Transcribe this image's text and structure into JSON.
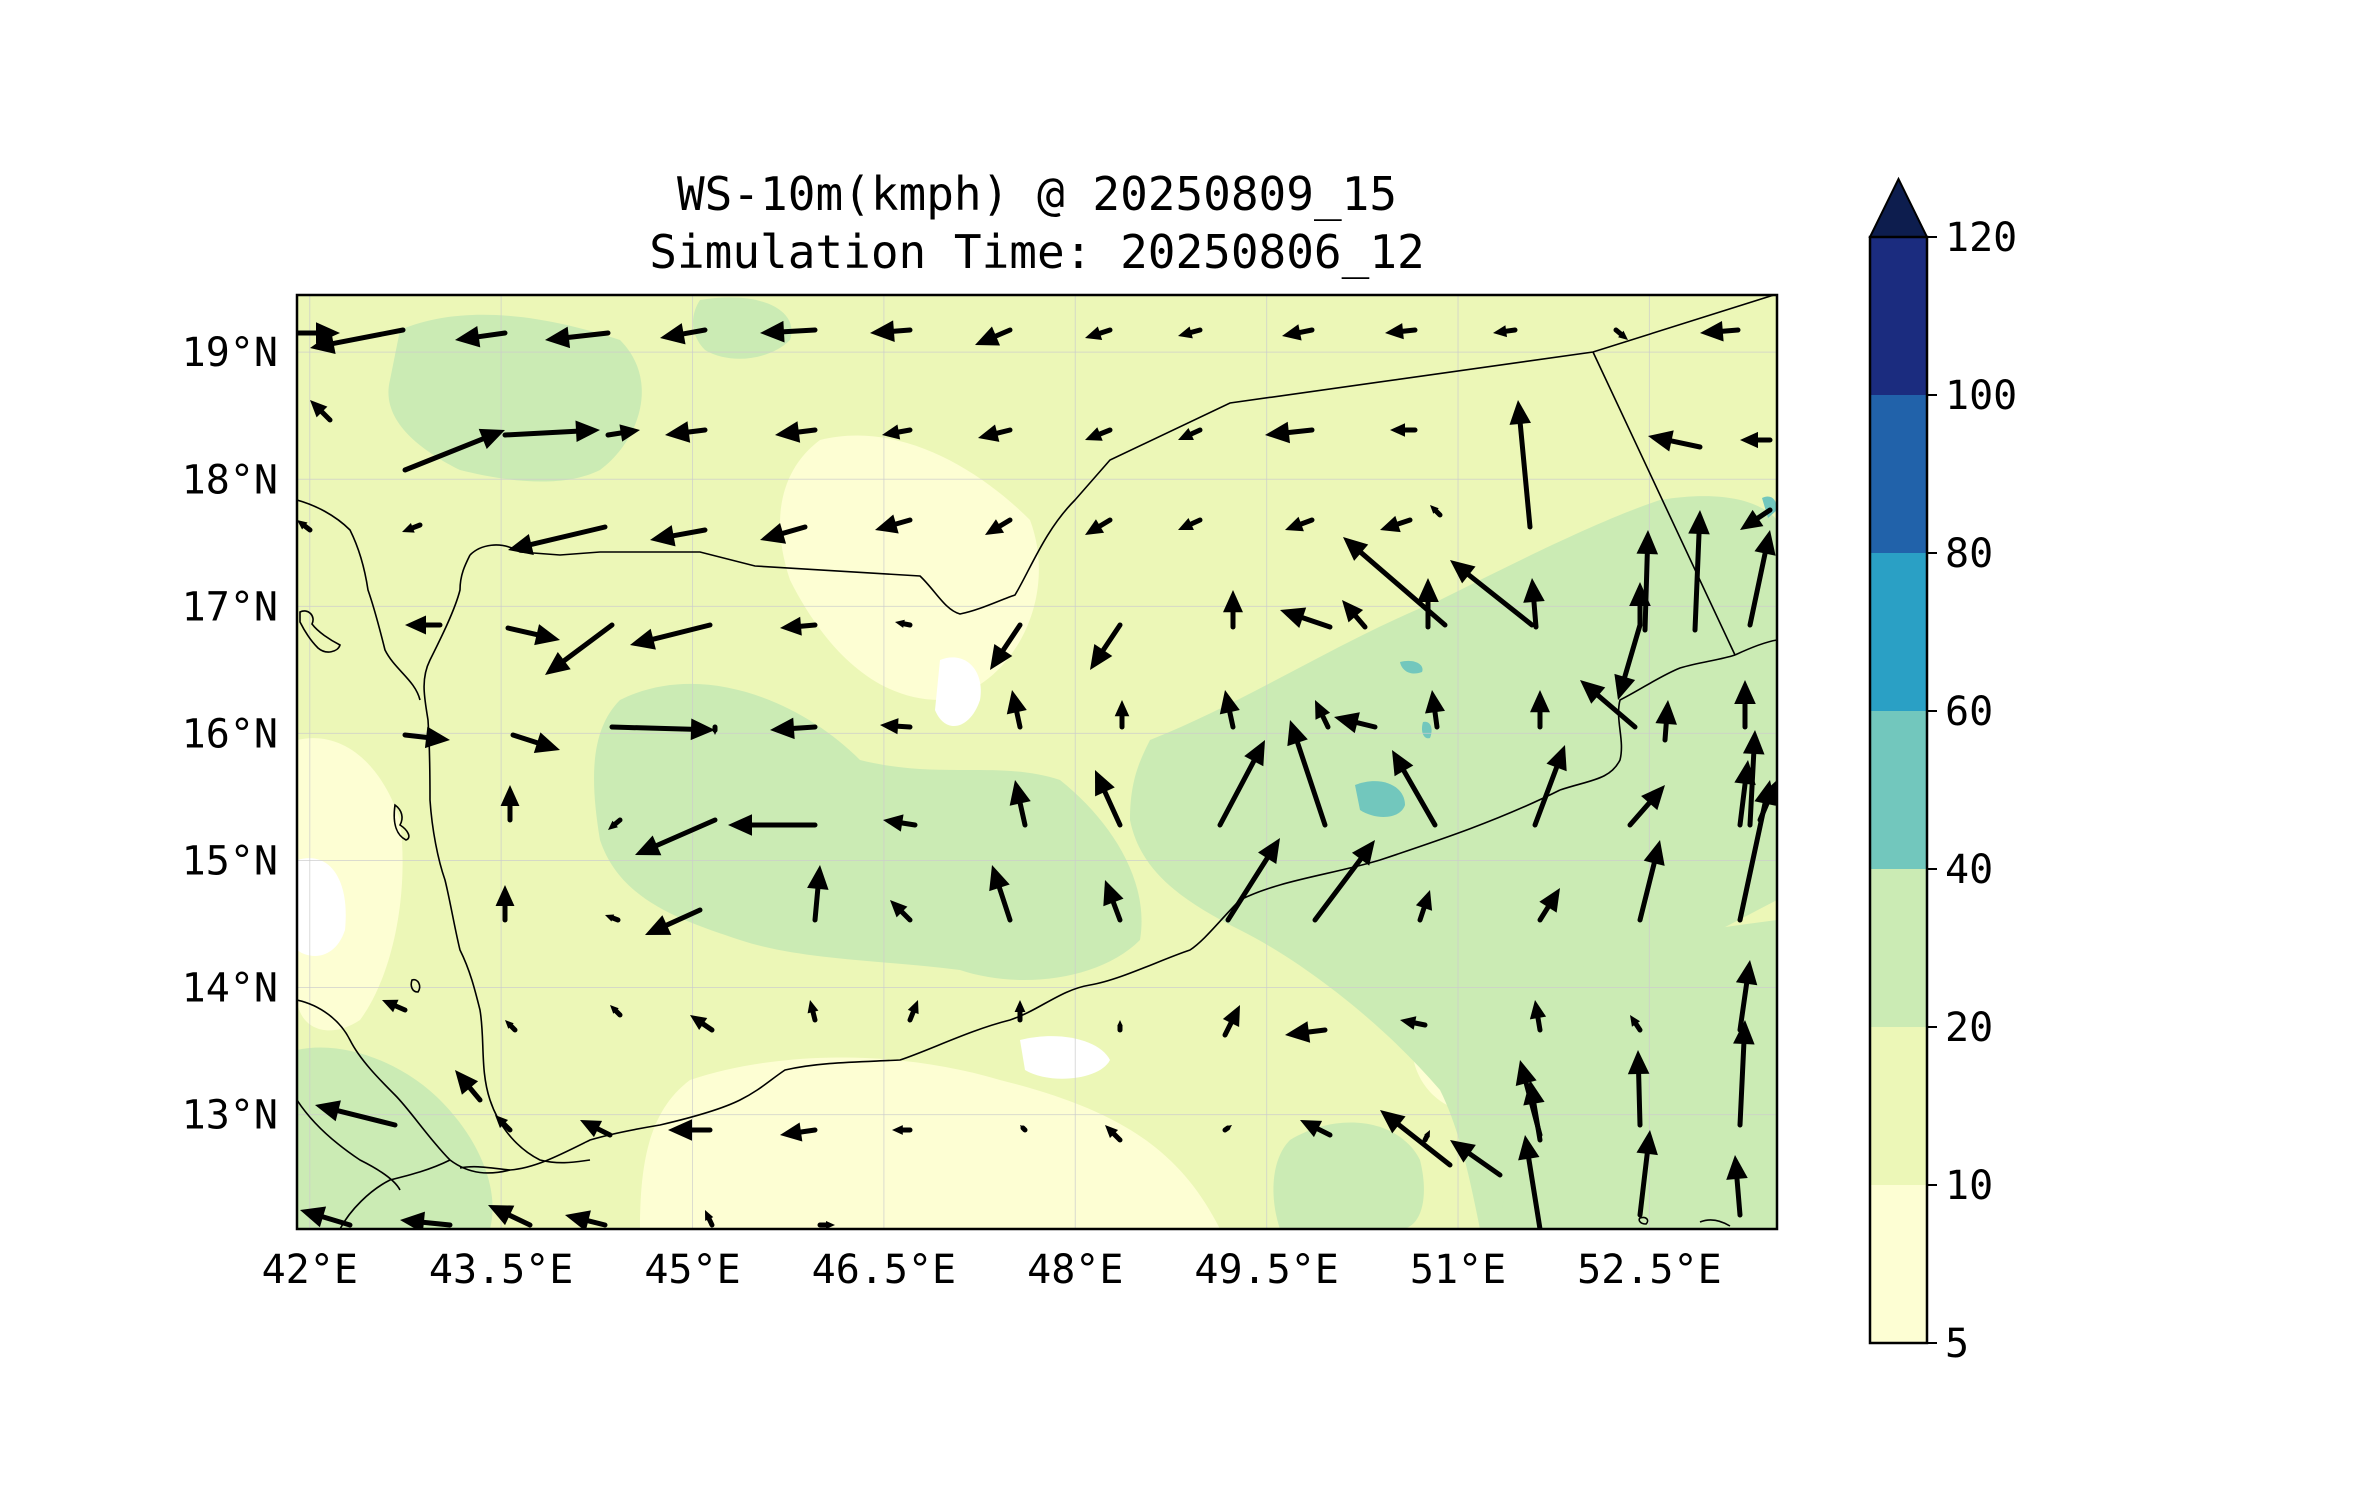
{
  "title": {
    "line1": "WS-10m(kmph) @ 20250809_15",
    "line2": "Simulation Time: 20250806_12"
  },
  "map": {
    "lon_range": [
      41.9,
      53.5
    ],
    "lat_range": [
      12.1,
      19.45
    ],
    "x_ticks": [
      {
        "value": 42.0,
        "label": "42°E"
      },
      {
        "value": 43.5,
        "label": "43.5°E"
      },
      {
        "value": 45.0,
        "label": "45°E"
      },
      {
        "value": 46.5,
        "label": "46.5°E"
      },
      {
        "value": 48.0,
        "label": "48°E"
      },
      {
        "value": 49.5,
        "label": "49.5°E"
      },
      {
        "value": 51.0,
        "label": "51°E"
      },
      {
        "value": 52.5,
        "label": "52.5°E"
      }
    ],
    "y_ticks": [
      {
        "value": 19,
        "label": "19°N"
      },
      {
        "value": 18,
        "label": "18°N"
      },
      {
        "value": 17,
        "label": "17°N"
      },
      {
        "value": 16,
        "label": "16°N"
      },
      {
        "value": 15,
        "label": "15°N"
      },
      {
        "value": 14,
        "label": "14°N"
      },
      {
        "value": 13,
        "label": "13°N"
      }
    ],
    "gridlines": true
  },
  "colorbar": {
    "levels": [
      5,
      10,
      20,
      40,
      60,
      80,
      100,
      120
    ],
    "labels": [
      "5",
      "10",
      "20",
      "40",
      "60",
      "80",
      "100",
      "120"
    ],
    "colors": [
      "#fdfed3",
      "#ecf7b7",
      "#cbebb4",
      "#72c7bd",
      "#2aa0c5",
      "#2162aa",
      "#1b2c7f"
    ],
    "extend_color": "#0d1d4e",
    "extend": "max"
  },
  "chart_data": {
    "type": "map",
    "variable": "WS-10m(kmph)",
    "valid_time": "20250809_15",
    "init_time": "20250806_12",
    "wind_vectors_note_units": "kmph",
    "regions": [
      {
        "level": "20-40",
        "lon": [
          43.0,
          44.8
        ],
        "lat": [
          17.5,
          19.4
        ]
      },
      {
        "level": "20-40",
        "lon": [
          45.3,
          48.5
        ],
        "lat": [
          14.0,
          16.5
        ]
      },
      {
        "level": "20-40",
        "lon": [
          48.8,
          51.7
        ],
        "lat": [
          14.8,
          17.3
        ]
      },
      {
        "level": "20-40",
        "lon": [
          51.2,
          53.5
        ],
        "lat": [
          12.1,
          17.7
        ]
      },
      {
        "level": "40-60",
        "lon": [
          50.2,
          50.5
        ],
        "lat": [
          15.25,
          15.5
        ]
      },
      {
        "level": "5-10",
        "lon": [
          46.0,
          48.0
        ],
        "lat": [
          16.0,
          16.6
        ]
      },
      {
        "level": "5-10",
        "lon": [
          41.9,
          42.6
        ],
        "lat": [
          14.1,
          15.8
        ]
      }
    ]
  }
}
